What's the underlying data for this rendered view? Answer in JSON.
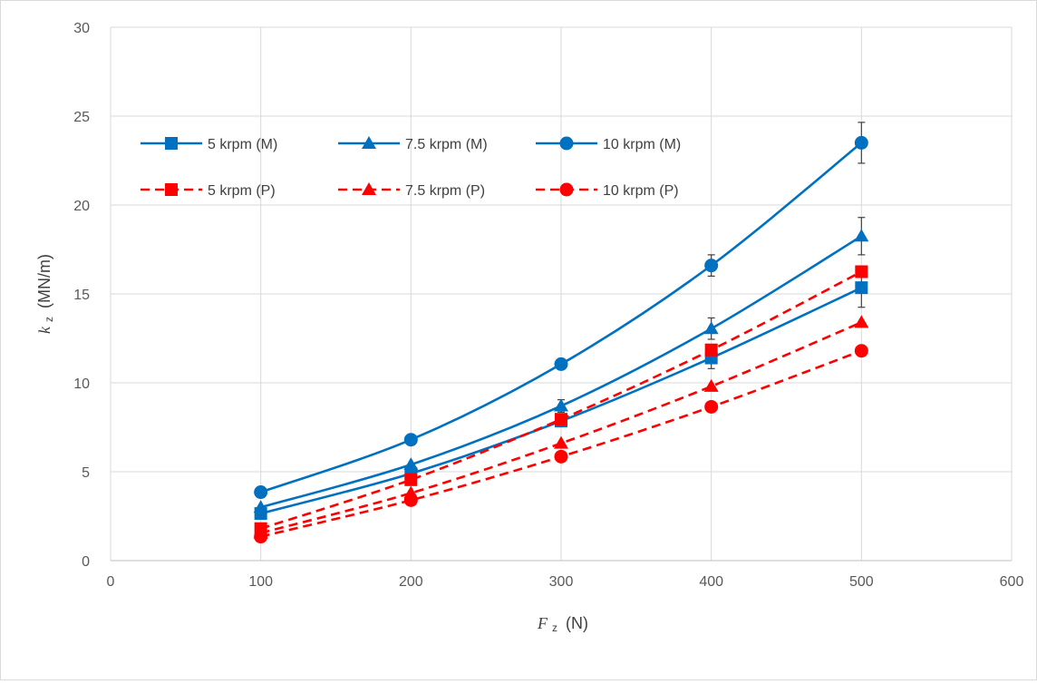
{
  "chart_data": {
    "type": "line",
    "xlabel": {
      "symbol": "F",
      "sub": "z",
      "unit": "(N)"
    },
    "ylabel": {
      "symbol": "k",
      "sub": "z",
      "unit": "(MN/m)"
    },
    "xlim": [
      0,
      600
    ],
    "ylim": [
      0,
      30
    ],
    "xticks": [
      0,
      100,
      200,
      300,
      400,
      500,
      600
    ],
    "yticks": [
      0,
      5,
      10,
      15,
      20,
      25,
      30
    ],
    "grid": true,
    "legend_position": "top-left, inside plot",
    "x": [
      100,
      200,
      300,
      400,
      500
    ],
    "series": [
      {
        "name": "5 krpm (M)",
        "color": "#0070C0",
        "marker": "square",
        "dash": "solid",
        "values": [
          2.65,
          4.9,
          7.85,
          11.4,
          15.35
        ],
        "error": [
          0,
          0,
          0.3,
          0.6,
          1.1
        ]
      },
      {
        "name": "7.5 krpm (M)",
        "color": "#0070C0",
        "marker": "triangle",
        "dash": "solid",
        "values": [
          3.0,
          5.4,
          8.7,
          13.05,
          18.25
        ],
        "error": [
          0,
          0,
          0.35,
          0.6,
          1.05
        ]
      },
      {
        "name": "10 krpm (M)",
        "color": "#0070C0",
        "marker": "circle",
        "dash": "solid",
        "values": [
          3.85,
          6.8,
          11.05,
          16.6,
          23.5
        ],
        "error": [
          0,
          0,
          0.15,
          0.6,
          1.15
        ]
      },
      {
        "name": "5 krpm (P)",
        "color": "#FF0000",
        "marker": "square",
        "dash": "dashed",
        "values": [
          1.8,
          4.55,
          7.95,
          11.85,
          16.25
        ],
        "error": [
          0,
          0,
          0,
          0,
          0
        ]
      },
      {
        "name": "7.5 krpm (P)",
        "color": "#FF0000",
        "marker": "triangle",
        "dash": "dashed",
        "values": [
          1.55,
          3.8,
          6.6,
          9.8,
          13.4
        ],
        "error": [
          0,
          0,
          0,
          0,
          0
        ]
      },
      {
        "name": "10 krpm (P)",
        "color": "#FF0000",
        "marker": "circle",
        "dash": "dashed",
        "values": [
          1.35,
          3.4,
          5.85,
          8.65,
          11.8
        ],
        "error": [
          0,
          0,
          0,
          0,
          0
        ]
      }
    ]
  }
}
